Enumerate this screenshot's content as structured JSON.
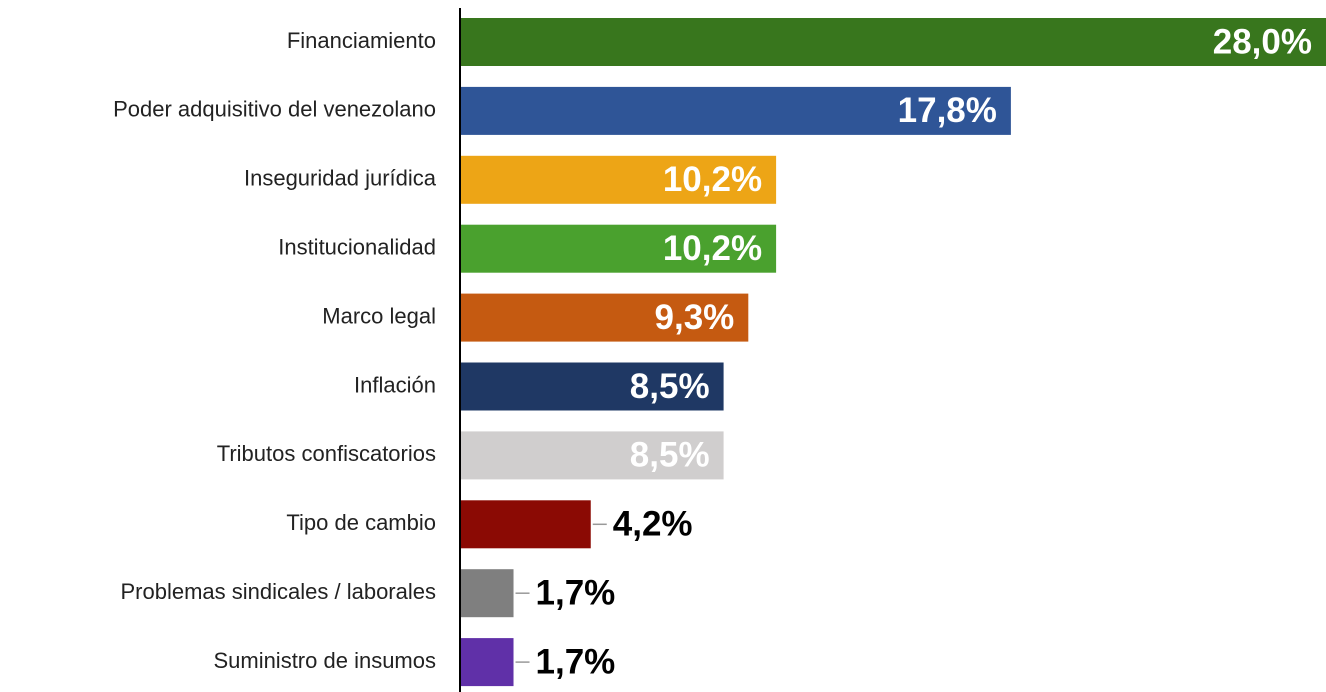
{
  "chart_data": {
    "type": "barh",
    "categories": [
      "Financiamiento",
      "Poder adquisitivo del venezolano",
      "Inseguridad jurídica",
      "Institucionalidad",
      "Marco legal",
      "Inflación",
      "Tributos confiscatorios",
      "Tipo de cambio",
      "Problemas sindicales / laborales",
      "Suministro de insumos"
    ],
    "values": [
      28.0,
      17.8,
      10.2,
      10.2,
      9.3,
      8.5,
      8.5,
      4.2,
      1.7,
      1.7
    ],
    "value_labels": [
      "28,0%",
      "17,8%",
      "10,2%",
      "10,2%",
      "9,3%",
      "8,5%",
      "8,5%",
      "4,2%",
      "1,7%",
      "1,7%"
    ],
    "colors": [
      "#38761d",
      "#2f5597",
      "#eda516",
      "#4aa12e",
      "#c55a11",
      "#1f3864",
      "#d0cece",
      "#8b0a04",
      "#7f7f7f",
      "#6030a8"
    ],
    "xlim": [
      0,
      28
    ]
  }
}
